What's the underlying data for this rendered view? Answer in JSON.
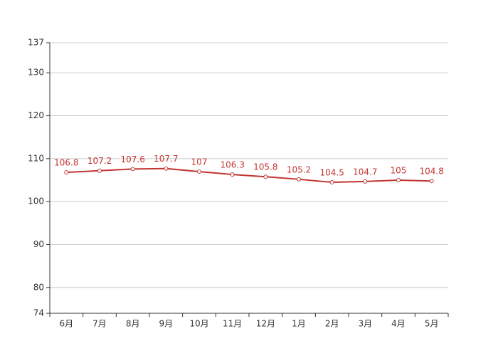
{
  "chart_data": {
    "type": "line",
    "categories": [
      "6月",
      "7月",
      "8月",
      "9月",
      "10月",
      "11月",
      "12月",
      "1月",
      "2月",
      "3月",
      "4月",
      "5月"
    ],
    "values": [
      106.8,
      107.2,
      107.6,
      107.7,
      107,
      106.3,
      105.8,
      105.2,
      104.5,
      104.7,
      105,
      104.8
    ],
    "color": "#c23531",
    "ylim": [
      74,
      137
    ],
    "yticks": [
      74,
      80,
      90,
      100,
      110,
      120,
      130,
      137
    ],
    "grid": true
  }
}
